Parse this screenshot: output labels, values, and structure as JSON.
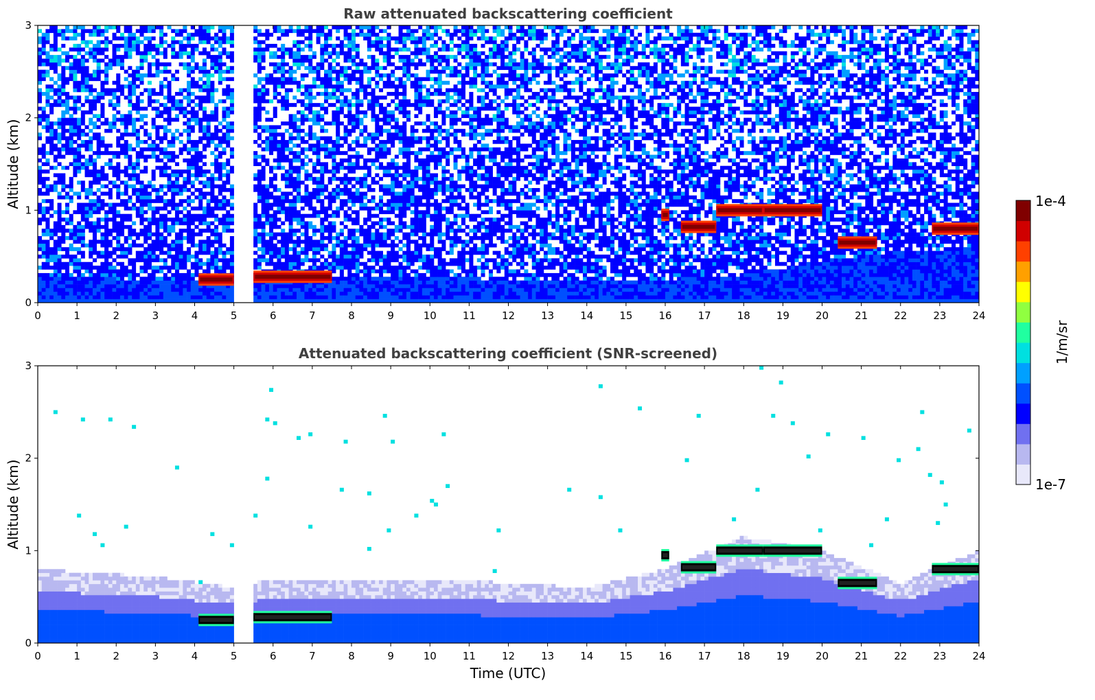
{
  "chart_data": [
    {
      "type": "heatmap",
      "title": "Raw attenuated backscattering coefficient",
      "xlabel": "",
      "ylabel": "Altitude (km)",
      "xlim": [
        0,
        24
      ],
      "ylim": [
        0,
        3
      ],
      "xticks": [
        "0",
        "1",
        "2",
        "3",
        "4",
        "5",
        "6",
        "7",
        "8",
        "9",
        "10",
        "11",
        "12",
        "13",
        "14",
        "15",
        "16",
        "17",
        "18",
        "19",
        "20",
        "21",
        "22",
        "23",
        "24"
      ],
      "yticks": [
        "0",
        "1",
        "2",
        "3"
      ],
      "colormap": "jet-like (white-blue-cyan-green-yellow-red-darkred)",
      "color_scale": "log",
      "data_gap_hours": [
        5.05,
        5.45
      ],
      "boundary_layer_top_km": [
        [
          0,
          0.27
        ],
        [
          2,
          0.26
        ],
        [
          4,
          0.25
        ],
        [
          5,
          0.27
        ],
        [
          6,
          0.3
        ],
        [
          8,
          0.28
        ],
        [
          10,
          0.28
        ],
        [
          12,
          0.25
        ],
        [
          14,
          0.22
        ],
        [
          16,
          0.25
        ],
        [
          18,
          0.3
        ],
        [
          20,
          0.45
        ],
        [
          22,
          0.55
        ],
        [
          24,
          0.6
        ]
      ],
      "cloud_layers_km": [
        {
          "start": 4.1,
          "end": 5.0,
          "alt": 0.25
        },
        {
          "start": 5.5,
          "end": 7.5,
          "alt": 0.28
        },
        {
          "start": 15.9,
          "end": 16.1,
          "alt": 0.95
        },
        {
          "start": 16.4,
          "end": 17.3,
          "alt": 0.82
        },
        {
          "start": 17.3,
          "end": 18.5,
          "alt": 1.0
        },
        {
          "start": 18.5,
          "end": 20.0,
          "alt": 1.0
        },
        {
          "start": 20.4,
          "end": 21.4,
          "alt": 0.65
        },
        {
          "start": 22.8,
          "end": 24.0,
          "alt": 0.8
        }
      ]
    },
    {
      "type": "heatmap",
      "title": "Attenuated backscattering coefficient (SNR-screened)",
      "xlabel": "Time (UTC)",
      "ylabel": "Altitude (km)",
      "xlim": [
        0,
        24
      ],
      "ylim": [
        0,
        3
      ],
      "xticks": [
        "0",
        "1",
        "2",
        "3",
        "4",
        "5",
        "6",
        "7",
        "8",
        "9",
        "10",
        "11",
        "12",
        "13",
        "14",
        "15",
        "16",
        "17",
        "18",
        "19",
        "20",
        "21",
        "22",
        "23",
        "24"
      ],
      "yticks": [
        "0",
        "1",
        "2",
        "3"
      ],
      "colormap": "jet-like (white-blue-cyan-green-yellow-red-darkred)",
      "color_scale": "log",
      "data_gap_hours": [
        5.05,
        5.45
      ],
      "screened_top_km": [
        [
          0,
          0.8
        ],
        [
          3,
          0.72
        ],
        [
          5,
          0.6
        ],
        [
          6,
          0.7
        ],
        [
          10,
          0.7
        ],
        [
          14,
          0.6
        ],
        [
          16,
          0.8
        ],
        [
          18,
          1.15
        ],
        [
          20,
          1.0
        ],
        [
          22,
          0.65
        ],
        [
          24,
          1.0
        ]
      ]
    }
  ],
  "colorbar": {
    "label": "1/m/sr",
    "max_label": "1e-4",
    "min_label": "1e-7",
    "colors": [
      "#e8e8fa",
      "#b8b8f0",
      "#7070f0",
      "#0000ff",
      "#0050ff",
      "#00a0ff",
      "#00e0e0",
      "#20ffa0",
      "#90ff40",
      "#ffff00",
      "#ffa000",
      "#ff4000",
      "#d00000",
      "#800000"
    ]
  }
}
